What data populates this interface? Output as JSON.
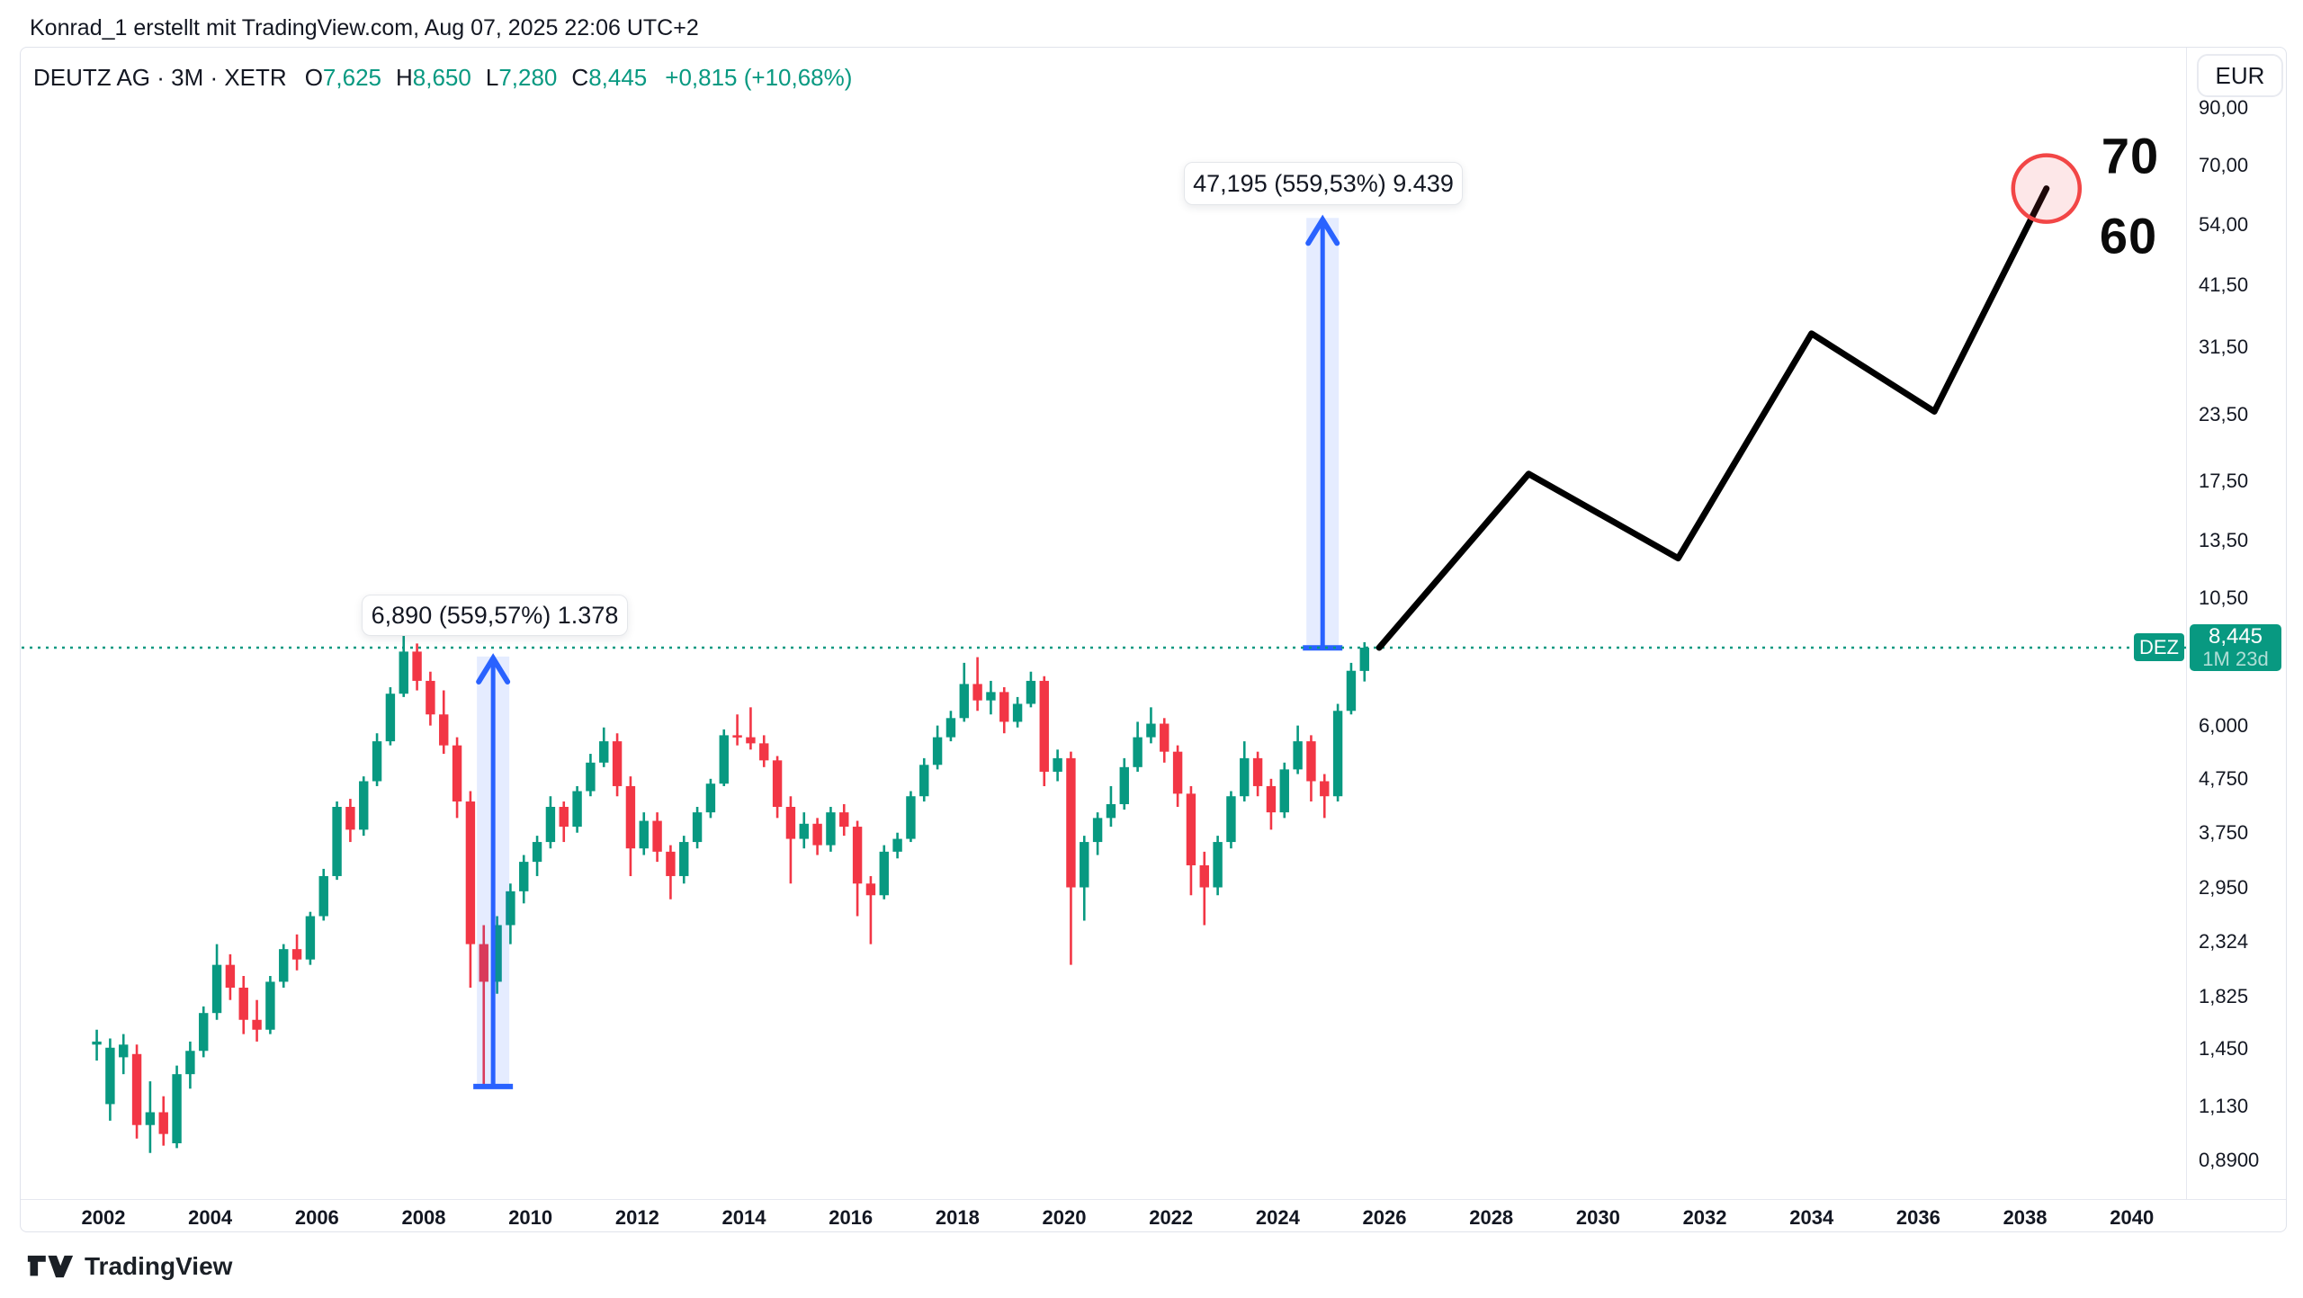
{
  "page": {
    "attribution": "Konrad_1 erstellt mit TradingView.com, Aug 07, 2025 22:06 UTC+2"
  },
  "legend": {
    "title": "DEUTZ AG · 3M · XETR",
    "o_label": "O",
    "o": "7,625",
    "h_label": "H",
    "h": "8,650",
    "l_label": "L",
    "l": "7,280",
    "c_label": "C",
    "c": "8,445",
    "change": "+0,815 (+10,68%)"
  },
  "price_axis": {
    "currency_button": "EUR",
    "ticks": [
      {
        "label": "90,00",
        "value": 90
      },
      {
        "label": "70,00",
        "value": 70
      },
      {
        "label": "54,00",
        "value": 54
      },
      {
        "label": "41,50",
        "value": 41.5
      },
      {
        "label": "31,50",
        "value": 31.5
      },
      {
        "label": "23,50",
        "value": 23.5
      },
      {
        "label": "17,50",
        "value": 17.5
      },
      {
        "label": "13,50",
        "value": 13.5
      },
      {
        "label": "10,50",
        "value": 10.5
      },
      {
        "label": "6,000",
        "value": 6
      },
      {
        "label": "4,750",
        "value": 4.75
      },
      {
        "label": "3,750",
        "value": 3.75
      },
      {
        "label": "2,950",
        "value": 2.95
      },
      {
        "label": "2,324",
        "value": 2.324
      },
      {
        "label": "1,825",
        "value": 1.825
      },
      {
        "label": "1,450",
        "value": 1.45
      },
      {
        "label": "1,130",
        "value": 1.13
      },
      {
        "label": "0,8900",
        "value": 0.89
      }
    ],
    "price_badge": {
      "value": "8,445",
      "countdown": "1M 23d"
    },
    "symbol_badge": "DEZ"
  },
  "time_axis": {
    "years": [
      2002,
      2004,
      2006,
      2008,
      2010,
      2012,
      2014,
      2016,
      2018,
      2020,
      2022,
      2024,
      2026,
      2028,
      2030,
      2032,
      2034,
      2036,
      2038,
      2040
    ]
  },
  "annotations": {
    "upper_target": "70",
    "lower_target": "60"
  },
  "measurements": [
    {
      "label": "6,890 (559,57%) 1.378",
      "year": 2009.3,
      "base_price": 1.2313,
      "top_price": 8.1213
    },
    {
      "label": "47,195 (559,53%) 9.439",
      "year": 2024.84,
      "base_price": 8.435,
      "top_price": 55.63
    }
  ],
  "footer": {
    "brand": "TradingView"
  },
  "chart_data": {
    "type": "candlestick",
    "symbol": "DEUTZ AG",
    "ticker": "DEZ",
    "exchange": "XETR",
    "timeframe": "3M",
    "currency": "EUR",
    "current_price": 8.445,
    "previous_close": 7.63,
    "change": "+0,815 (+10,68%)",
    "price_line": {
      "value": 8.445,
      "style": "dotted",
      "color": "#089981"
    },
    "y_axis": {
      "scale": "log",
      "ticks": [
        90,
        70,
        54,
        41.5,
        31.5,
        23.5,
        17.5,
        13.5,
        10.5,
        6,
        4.75,
        3.75,
        2.95,
        2.324,
        1.825,
        1.45,
        1.13,
        0.89
      ]
    },
    "x_axis": {
      "start": 2002,
      "end": 2040,
      "tick_step": 2
    },
    "colors": {
      "up": "#089981",
      "down": "#F23645",
      "measure": "#2962FF",
      "measure_fill": "rgba(41,98,255,0.12)",
      "projection": "#000000",
      "circle_stroke": "#F24646",
      "circle_fill": "rgba(242,54,69,0.12)",
      "grid": "#e6e8ef"
    },
    "candles": [
      [
        2001.75,
        1.48,
        1.58,
        1.38,
        1.5
      ],
      [
        2002.0,
        1.14,
        1.52,
        1.06,
        1.46
      ],
      [
        2002.25,
        1.4,
        1.55,
        1.3,
        1.48
      ],
      [
        2002.5,
        1.42,
        1.48,
        0.98,
        1.04
      ],
      [
        2002.75,
        1.04,
        1.26,
        0.92,
        1.1
      ],
      [
        2003.0,
        1.1,
        1.18,
        0.95,
        1.0
      ],
      [
        2003.25,
        0.96,
        1.35,
        0.94,
        1.3
      ],
      [
        2003.5,
        1.3,
        1.5,
        1.22,
        1.44
      ],
      [
        2003.75,
        1.44,
        1.75,
        1.4,
        1.7
      ],
      [
        2004.0,
        1.7,
        2.3,
        1.65,
        2.1
      ],
      [
        2004.25,
        2.1,
        2.2,
        1.8,
        1.9
      ],
      [
        2004.5,
        1.9,
        2.0,
        1.55,
        1.65
      ],
      [
        2004.75,
        1.65,
        1.8,
        1.5,
        1.58
      ],
      [
        2005.0,
        1.58,
        2.0,
        1.55,
        1.95
      ],
      [
        2005.25,
        1.95,
        2.3,
        1.9,
        2.25
      ],
      [
        2005.5,
        2.25,
        2.4,
        2.05,
        2.15
      ],
      [
        2005.75,
        2.15,
        2.65,
        2.1,
        2.6
      ],
      [
        2006.0,
        2.6,
        3.2,
        2.55,
        3.1
      ],
      [
        2006.25,
        3.1,
        4.3,
        3.05,
        4.2
      ],
      [
        2006.5,
        4.2,
        4.35,
        3.6,
        3.8
      ],
      [
        2006.75,
        3.8,
        4.8,
        3.7,
        4.7
      ],
      [
        2007.0,
        4.7,
        5.8,
        4.6,
        5.6
      ],
      [
        2007.25,
        5.6,
        7.1,
        5.5,
        6.9
      ],
      [
        2007.5,
        6.9,
        8.9,
        6.8,
        8.3
      ],
      [
        2007.75,
        8.3,
        8.6,
        7.0,
        7.3
      ],
      [
        2008.0,
        7.3,
        7.6,
        6.0,
        6.3
      ],
      [
        2008.25,
        6.3,
        7.0,
        5.3,
        5.5
      ],
      [
        2008.5,
        5.5,
        5.7,
        4.0,
        4.3
      ],
      [
        2008.75,
        4.3,
        4.5,
        1.9,
        2.3
      ],
      [
        2009.0,
        2.3,
        2.5,
        1.23,
        1.95
      ],
      [
        2009.25,
        1.95,
        2.6,
        1.85,
        2.5
      ],
      [
        2009.5,
        2.5,
        3.0,
        2.3,
        2.9
      ],
      [
        2009.75,
        2.9,
        3.4,
        2.75,
        3.3
      ],
      [
        2010.0,
        3.3,
        3.7,
        3.1,
        3.6
      ],
      [
        2010.25,
        3.6,
        4.4,
        3.5,
        4.2
      ],
      [
        2010.5,
        4.2,
        4.3,
        3.6,
        3.85
      ],
      [
        2010.75,
        3.85,
        4.6,
        3.75,
        4.5
      ],
      [
        2011.0,
        4.5,
        5.3,
        4.4,
        5.1
      ],
      [
        2011.25,
        5.1,
        5.95,
        5.0,
        5.6
      ],
      [
        2011.5,
        5.6,
        5.8,
        4.4,
        4.6
      ],
      [
        2011.75,
        4.6,
        4.8,
        3.1,
        3.5
      ],
      [
        2012.0,
        3.5,
        4.1,
        3.4,
        3.95
      ],
      [
        2012.25,
        3.95,
        4.1,
        3.3,
        3.45
      ],
      [
        2012.5,
        3.45,
        3.55,
        2.8,
        3.1
      ],
      [
        2012.75,
        3.1,
        3.7,
        3.0,
        3.6
      ],
      [
        2013.0,
        3.6,
        4.2,
        3.5,
        4.1
      ],
      [
        2013.25,
        4.1,
        4.75,
        4.0,
        4.65
      ],
      [
        2013.5,
        4.65,
        5.9,
        4.6,
        5.75
      ],
      [
        2013.75,
        5.75,
        6.3,
        5.5,
        5.7
      ],
      [
        2014.0,
        5.7,
        6.5,
        5.4,
        5.55
      ],
      [
        2014.25,
        5.55,
        5.75,
        5.0,
        5.15
      ],
      [
        2014.5,
        5.15,
        5.25,
        4.0,
        4.2
      ],
      [
        2014.75,
        4.2,
        4.4,
        3.0,
        3.65
      ],
      [
        2015.0,
        3.65,
        4.1,
        3.5,
        3.9
      ],
      [
        2015.25,
        3.9,
        4.0,
        3.4,
        3.55
      ],
      [
        2015.5,
        3.55,
        4.2,
        3.45,
        4.1
      ],
      [
        2015.75,
        4.1,
        4.25,
        3.7,
        3.85
      ],
      [
        2016.0,
        3.85,
        3.95,
        2.6,
        3.0
      ],
      [
        2016.25,
        3.0,
        3.1,
        2.3,
        2.85
      ],
      [
        2016.5,
        2.85,
        3.55,
        2.8,
        3.45
      ],
      [
        2016.75,
        3.45,
        3.75,
        3.35,
        3.65
      ],
      [
        2017.0,
        3.65,
        4.5,
        3.6,
        4.4
      ],
      [
        2017.25,
        4.4,
        5.2,
        4.3,
        5.05
      ],
      [
        2017.5,
        5.05,
        6.0,
        4.95,
        5.7
      ],
      [
        2017.75,
        5.7,
        6.4,
        5.6,
        6.2
      ],
      [
        2018.0,
        6.2,
        7.9,
        6.1,
        7.2
      ],
      [
        2018.25,
        7.2,
        8.1,
        6.4,
        6.7
      ],
      [
        2018.5,
        6.7,
        7.3,
        6.3,
        6.95
      ],
      [
        2018.75,
        6.95,
        7.1,
        5.8,
        6.1
      ],
      [
        2019.0,
        6.1,
        6.8,
        5.95,
        6.6
      ],
      [
        2019.25,
        6.6,
        7.6,
        6.5,
        7.3
      ],
      [
        2019.5,
        7.3,
        7.45,
        4.6,
        4.9
      ],
      [
        2019.75,
        4.9,
        5.4,
        4.7,
        5.2
      ],
      [
        2020.0,
        5.2,
        5.35,
        2.1,
        2.95
      ],
      [
        2020.25,
        2.95,
        3.7,
        2.55,
        3.6
      ],
      [
        2020.5,
        3.6,
        4.1,
        3.4,
        4.0
      ],
      [
        2020.75,
        4.0,
        4.6,
        3.85,
        4.25
      ],
      [
        2021.0,
        4.25,
        5.2,
        4.15,
        5.0
      ],
      [
        2021.25,
        5.0,
        6.1,
        4.9,
        5.7
      ],
      [
        2021.5,
        5.7,
        6.5,
        5.55,
        6.05
      ],
      [
        2021.75,
        6.05,
        6.2,
        5.1,
        5.35
      ],
      [
        2022.0,
        5.35,
        5.5,
        4.2,
        4.45
      ],
      [
        2022.25,
        4.45,
        4.6,
        2.85,
        3.25
      ],
      [
        2022.5,
        3.25,
        3.45,
        2.5,
        2.95
      ],
      [
        2022.75,
        2.95,
        3.7,
        2.85,
        3.6
      ],
      [
        2023.0,
        3.6,
        4.5,
        3.5,
        4.4
      ],
      [
        2023.25,
        4.4,
        5.6,
        4.3,
        5.2
      ],
      [
        2023.5,
        5.2,
        5.35,
        4.4,
        4.6
      ],
      [
        2023.75,
        4.6,
        4.75,
        3.8,
        4.1
      ],
      [
        2024.0,
        4.1,
        5.1,
        4.0,
        4.95
      ],
      [
        2024.25,
        4.95,
        6.0,
        4.85,
        5.6
      ],
      [
        2024.5,
        5.6,
        5.75,
        4.3,
        4.7
      ],
      [
        2024.75,
        4.7,
        4.85,
        4.0,
        4.4
      ],
      [
        2025.0,
        4.4,
        6.6,
        4.3,
        6.4
      ],
      [
        2025.25,
        6.4,
        7.9,
        6.3,
        7.63
      ],
      [
        2025.5,
        7.625,
        8.65,
        7.28,
        8.445
      ]
    ],
    "projection_line": [
      [
        2025.9,
        8.445
      ],
      [
        2028.7,
        18.1
      ],
      [
        2031.5,
        12.5
      ],
      [
        2034.0,
        33.5
      ],
      [
        2036.3,
        23.8
      ],
      [
        2038.4,
        63.3
      ]
    ],
    "target_circle": {
      "year": 2038.4,
      "price": 63.3
    }
  }
}
